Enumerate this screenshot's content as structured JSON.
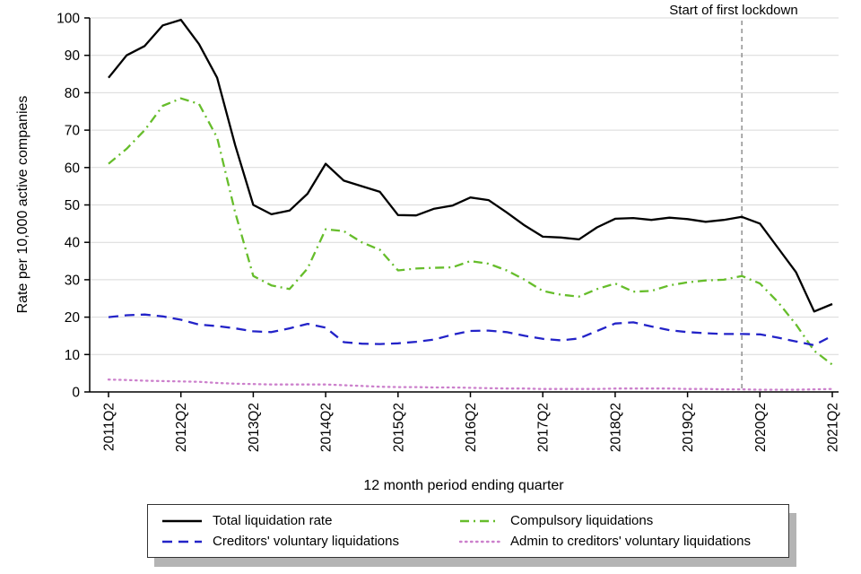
{
  "chart_data": {
    "type": "line",
    "title": "",
    "xlabel": "12 month period ending quarter",
    "ylabel": "Rate per 10,000 active companies",
    "ylim": [
      0,
      100
    ],
    "yticks": [
      0,
      10,
      20,
      30,
      40,
      50,
      60,
      70,
      80,
      90,
      100
    ],
    "grid": "horizontal",
    "x_categories": [
      "2011Q2",
      "2011Q3",
      "2011Q4",
      "2012Q1",
      "2012Q2",
      "2012Q3",
      "2012Q4",
      "2013Q1",
      "2013Q2",
      "2013Q3",
      "2013Q4",
      "2014Q1",
      "2014Q2",
      "2014Q3",
      "2014Q4",
      "2015Q1",
      "2015Q2",
      "2015Q3",
      "2015Q4",
      "2016Q1",
      "2016Q2",
      "2016Q3",
      "2016Q4",
      "2017Q1",
      "2017Q2",
      "2017Q3",
      "2017Q4",
      "2018Q1",
      "2018Q2",
      "2018Q3",
      "2018Q4",
      "2019Q1",
      "2019Q2",
      "2019Q3",
      "2019Q4",
      "2020Q1",
      "2020Q2",
      "2020Q3",
      "2020Q4",
      "2021Q1",
      "2021Q2"
    ],
    "x_tick_labels": [
      "2011Q2",
      "2012Q2",
      "2013Q2",
      "2014Q2",
      "2015Q2",
      "2016Q2",
      "2017Q2",
      "2018Q2",
      "2019Q2",
      "2020Q2",
      "2021Q2"
    ],
    "annotation": {
      "label": "Start of first lockdown",
      "x": "2020Q1",
      "line_color": "#808080",
      "line_style": "dashed"
    },
    "series": [
      {
        "name": "Total liquidation rate",
        "color": "#000000",
        "dash": "solid",
        "values": [
          84,
          90,
          92.5,
          98,
          99.5,
          93,
          84,
          66,
          50,
          47.5,
          48.5,
          53,
          61,
          56.5,
          55,
          53.5,
          47.3,
          47.2,
          49,
          49.8,
          52,
          51.3,
          48,
          44.5,
          41.5,
          41.3,
          40.8,
          44,
          46.3,
          46.5,
          46,
          46.6,
          46.2,
          45.5,
          46,
          46.8,
          45,
          38.5,
          32,
          21.5,
          23.5
        ]
      },
      {
        "name": "Creditors' voluntary liquidations",
        "color": "#2323c8",
        "dash": "dashed",
        "values": [
          20,
          20.5,
          20.7,
          20.2,
          19.3,
          18,
          17.6,
          17,
          16.2,
          16,
          17,
          18.2,
          17.2,
          13.3,
          12.9,
          12.8,
          13,
          13.4,
          14,
          15.3,
          16.3,
          16.4,
          16,
          15,
          14.2,
          13.8,
          14.3,
          16.3,
          18.3,
          18.6,
          17.5,
          16.5,
          16,
          15.7,
          15.5,
          15.5,
          15.4,
          14.5,
          13.5,
          12.5,
          15
        ]
      },
      {
        "name": "Compulsory liquidations",
        "color": "#66bd2b",
        "dash": "dashdot",
        "values": [
          61,
          65,
          70,
          76.5,
          78.5,
          77,
          68,
          48,
          31,
          28.5,
          27.5,
          33,
          43.5,
          43,
          40,
          38,
          32.5,
          33,
          33.2,
          33.3,
          35,
          34.3,
          32.5,
          30,
          27,
          26,
          25.5,
          27.5,
          29,
          26.8,
          27,
          28.5,
          29.3,
          29.8,
          30,
          31,
          29,
          24,
          18,
          11,
          7.3
        ]
      },
      {
        "name": "Admin to creditors' voluntary liquidations",
        "color": "#cc80cc",
        "dash": "dotted",
        "values": [
          3.3,
          3.2,
          3.0,
          2.9,
          2.8,
          2.7,
          2.4,
          2.2,
          2.1,
          2.0,
          2.0,
          2.0,
          2.0,
          1.8,
          1.6,
          1.4,
          1.3,
          1.3,
          1.2,
          1.2,
          1.1,
          1.0,
          0.9,
          0.9,
          0.8,
          0.8,
          0.8,
          0.8,
          0.9,
          0.9,
          0.9,
          0.9,
          0.8,
          0.8,
          0.7,
          0.7,
          0.6,
          0.6,
          0.6,
          0.7,
          0.8
        ]
      }
    ],
    "legend": {
      "position": "bottom",
      "order": [
        "Total liquidation rate",
        "Compulsory liquidations",
        "Creditors' voluntary liquidations",
        "Admin to creditors' voluntary liquidations"
      ]
    }
  }
}
